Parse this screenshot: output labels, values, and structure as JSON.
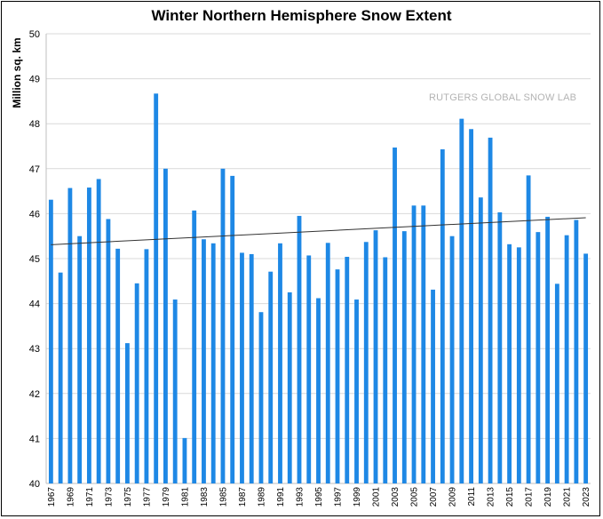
{
  "chart_data": {
    "type": "bar",
    "title": "Winter Northern Hemisphere Snow Extent",
    "ylabel": "Million sq. km",
    "xlabel": "",
    "annotation": "RUTGERS GLOBAL SNOW LAB",
    "ylim": [
      40,
      50
    ],
    "yticks": [
      40,
      41,
      42,
      43,
      44,
      45,
      46,
      47,
      48,
      49,
      50
    ],
    "grid": true,
    "bar_color": "#1e88e5",
    "trend_color": "#333333",
    "categories": [
      1967,
      1968,
      1969,
      1970,
      1971,
      1972,
      1973,
      1974,
      1975,
      1976,
      1977,
      1978,
      1979,
      1980,
      1981,
      1982,
      1983,
      1984,
      1985,
      1986,
      1987,
      1988,
      1989,
      1990,
      1991,
      1992,
      1993,
      1994,
      1995,
      1996,
      1997,
      1998,
      1999,
      2000,
      2001,
      2002,
      2003,
      2004,
      2005,
      2006,
      2007,
      2008,
      2009,
      2010,
      2011,
      2012,
      2013,
      2014,
      2015,
      2016,
      2017,
      2018,
      2019,
      2020,
      2021,
      2022,
      2023
    ],
    "tick_labels": [
      "1967",
      "1969",
      "1971",
      "1973",
      "1975",
      "1977",
      "1979",
      "1981",
      "1983",
      "1985",
      "1987",
      "1989",
      "1991",
      "1993",
      "1995",
      "1997",
      "1999",
      "2001",
      "2003",
      "2005",
      "2007",
      "2009",
      "2011",
      "2013",
      "2015",
      "2017",
      "2019",
      "2021",
      "2023"
    ],
    "values": [
      46.31,
      44.69,
      46.57,
      45.5,
      46.58,
      46.77,
      45.88,
      45.22,
      43.12,
      44.45,
      45.21,
      48.67,
      47.0,
      44.09,
      41.01,
      46.07,
      45.43,
      45.34,
      47.0,
      46.84,
      45.13,
      45.1,
      43.81,
      44.71,
      45.34,
      44.25,
      45.95,
      45.07,
      44.12,
      45.35,
      44.76,
      45.04,
      44.09,
      45.37,
      45.63,
      45.03,
      47.47,
      45.61,
      46.18,
      46.18,
      44.31,
      47.43,
      45.5,
      48.11,
      47.88,
      46.36,
      47.69,
      46.03,
      45.32,
      45.25,
      46.85,
      45.59,
      45.93,
      44.44,
      45.52,
      45.86,
      45.11
    ],
    "trend": {
      "start": 45.31,
      "end": 45.91
    }
  }
}
